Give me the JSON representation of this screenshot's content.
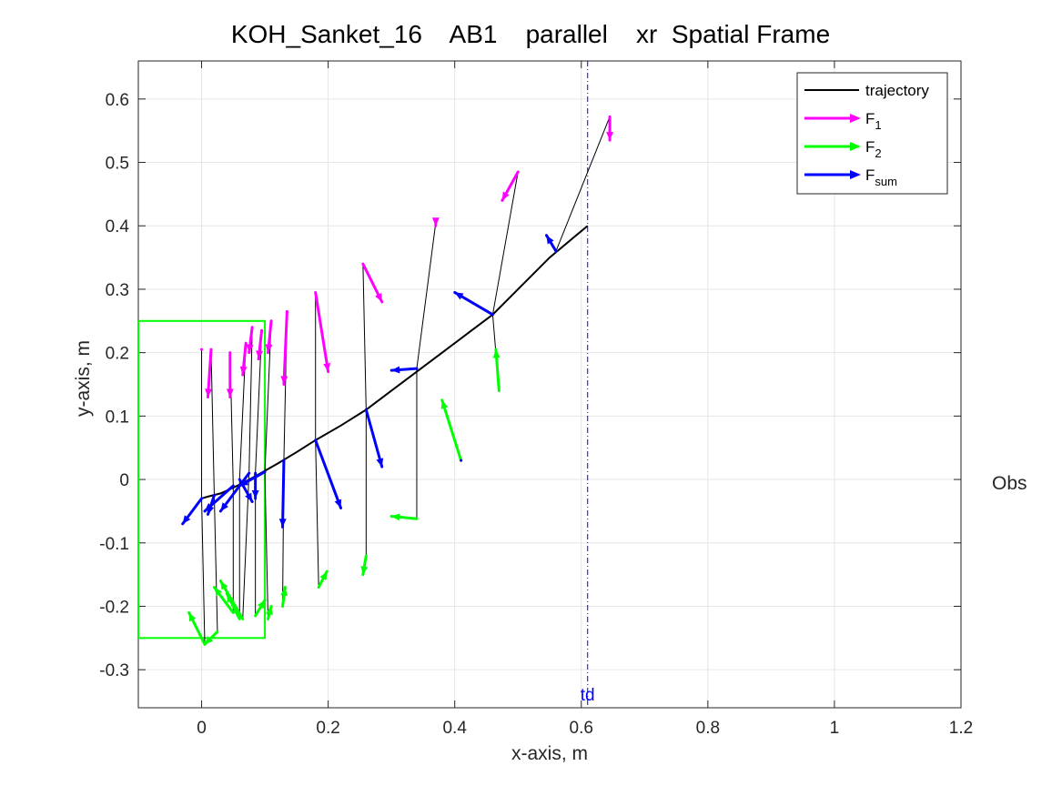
{
  "chart_data": {
    "type": "line",
    "title": "KOH_Sanket_16    AB1    parallel    xr  Spatial Frame",
    "xlabel": "x-axis, m",
    "ylabel": "y-axis, m",
    "xlim": [
      -0.1,
      1.2
    ],
    "ylim": [
      -0.36,
      0.66
    ],
    "xticks": [
      0,
      0.2,
      0.4,
      0.6,
      0.8,
      1,
      1.2
    ],
    "xtick_labels": [
      "0",
      "0.2",
      "0.4",
      "0.6",
      "0.8",
      "1",
      "1.2"
    ],
    "yticks": [
      -0.3,
      -0.2,
      -0.1,
      0,
      0.1,
      0.2,
      0.3,
      0.4,
      0.5,
      0.6
    ],
    "ytick_labels": [
      "-0.3",
      "-0.2",
      "-0.1",
      "0",
      "0.1",
      "0.2",
      "0.3",
      "0.4",
      "0.5",
      "0.6"
    ],
    "grid": true,
    "legend_position": "top-right",
    "legend": [
      {
        "label": "trajectory",
        "sub": "",
        "color": "#000000",
        "kind": "line"
      },
      {
        "label": "F",
        "sub": "1",
        "color": "#ff00ff",
        "kind": "arrow"
      },
      {
        "label": "F",
        "sub": "2",
        "color": "#00ff00",
        "kind": "arrow"
      },
      {
        "label": "F",
        "sub": "sum",
        "color": "#0000ff",
        "kind": "arrow"
      }
    ],
    "trajectory": {
      "color": "#000000",
      "x": [
        0.0,
        0.01,
        0.03,
        0.05,
        0.07,
        0.09,
        0.12,
        0.15,
        0.18,
        0.22,
        0.26,
        0.3,
        0.34,
        0.38,
        0.42,
        0.46,
        0.5,
        0.55,
        0.61
      ],
      "y": [
        -0.03,
        -0.027,
        -0.022,
        -0.013,
        -0.003,
        0.008,
        0.025,
        0.043,
        0.062,
        0.085,
        0.11,
        0.14,
        0.17,
        0.2,
        0.23,
        0.26,
        0.3,
        0.35,
        0.4
      ]
    },
    "region_box": {
      "x0": -0.1,
      "x1": 0.1,
      "y0": -0.25,
      "y1": 0.25,
      "color": "#00ff00"
    },
    "vline": {
      "x": 0.61,
      "label": "td",
      "color": "#0000ff"
    },
    "side_label": "Obs",
    "force_samples": [
      {
        "p": [
          0.26,
          0.11
        ],
        "f1": [
          0.255,
          0.34,
          0.285,
          0.28
        ],
        "f2": [
          0.26,
          -0.12,
          0.255,
          -0.15
        ],
        "fs": [
          0.26,
          0.11,
          0.285,
          0.02
        ]
      },
      {
        "p": [
          0.18,
          0.062
        ],
        "f1": [
          0.18,
          0.295,
          0.2,
          0.17
        ],
        "f2": [
          0.185,
          -0.17,
          0.198,
          -0.145
        ],
        "fs": [
          0.18,
          0.062,
          0.22,
          -0.045
        ]
      },
      {
        "p": [
          0.34,
          0.175
        ],
        "f1": [
          0.37,
          0.405,
          0.37,
          0.4
        ],
        "f2": [
          0.34,
          -0.062,
          0.3,
          -0.058
        ],
        "fs": [
          0.34,
          0.175,
          0.3,
          0.172
        ]
      },
      {
        "p": [
          0.46,
          0.26
        ],
        "f1": [
          0.5,
          0.485,
          0.475,
          0.44
        ],
        "f2": [
          0.47,
          0.14,
          0.465,
          0.205
        ],
        "fs": [
          0.46,
          0.26,
          0.4,
          0.295
        ]
      },
      {
        "p": [
          0.41,
          0.03
        ],
        "f1": [
          0.41,
          0.03,
          0.41,
          0.03
        ],
        "f2": [
          0.41,
          0.03,
          0.38,
          0.125
        ],
        "fs": [
          0.41,
          0.03,
          0.41,
          0.03
        ]
      },
      {
        "p": [
          0.56,
          0.36
        ],
        "f1": [
          0.645,
          0.572,
          0.645,
          0.535
        ],
        "f2": [
          0.56,
          0.36,
          0.56,
          0.36
        ],
        "fs": [
          0.56,
          0.36,
          0.545,
          0.385
        ]
      },
      {
        "p": [
          0.13,
          0.03
        ],
        "f1": [
          0.135,
          0.265,
          0.13,
          0.15
        ],
        "f2": [
          0.128,
          -0.2,
          0.132,
          -0.17
        ],
        "fs": [
          0.13,
          0.03,
          0.128,
          -0.075
        ]
      },
      {
        "p": [
          0.075,
          0.01
        ],
        "f1": [
          0.08,
          0.24,
          0.075,
          0.2
        ],
        "f2": [
          0.065,
          -0.22,
          0.03,
          -0.16
        ],
        "fs": [
          0.075,
          0.01,
          0.03,
          -0.05
        ]
      },
      {
        "p": [
          0.05,
          -0.01
        ],
        "f1": [
          0.045,
          0.2,
          0.045,
          0.13
        ],
        "f2": [
          0.05,
          -0.21,
          0.02,
          -0.17
        ],
        "fs": [
          0.05,
          -0.01,
          0.005,
          -0.05
        ]
      },
      {
        "p": [
          0.0,
          -0.03
        ],
        "f1": [
          0.0,
          0.205,
          0.0,
          0.205
        ],
        "f2": [
          0.005,
          -0.26,
          -0.02,
          -0.21
        ],
        "fs": [
          0.0,
          -0.03,
          -0.03,
          -0.07
        ]
      },
      {
        "p": [
          0.06,
          0.0
        ],
        "f1": [
          0.07,
          0.215,
          0.065,
          0.165
        ],
        "f2": [
          0.06,
          -0.22,
          0.04,
          -0.18
        ],
        "fs": [
          0.06,
          0.0,
          0.08,
          -0.035
        ]
      },
      {
        "p": [
          0.085,
          0.01
        ],
        "f1": [
          0.095,
          0.235,
          0.09,
          0.19
        ],
        "f2": [
          0.085,
          -0.215,
          0.1,
          -0.19
        ],
        "fs": [
          0.085,
          0.01,
          0.085,
          -0.03
        ]
      },
      {
        "p": [
          0.02,
          -0.025
        ],
        "f1": [
          0.015,
          0.205,
          0.01,
          0.13
        ],
        "f2": [
          0.025,
          -0.24,
          0.005,
          -0.26
        ],
        "fs": [
          0.02,
          -0.025,
          0.01,
          -0.055
        ]
      },
      {
        "p": [
          0.1,
          0.012
        ],
        "f1": [
          0.11,
          0.25,
          0.105,
          0.2
        ],
        "f2": [
          0.105,
          -0.22,
          0.11,
          -0.2
        ],
        "fs": [
          0.1,
          0.012,
          0.06,
          -0.01
        ]
      }
    ]
  }
}
